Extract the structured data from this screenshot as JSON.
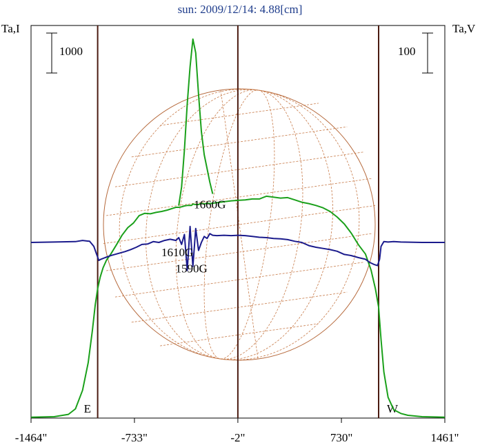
{
  "chart_data": {
    "type": "line",
    "title": "sun: 2009/12/14: 4.88[cm]",
    "ylabel_left": "Ta,I",
    "ylabel_right": "Ta,V",
    "scalebar_left": "1000",
    "scalebar_right": "100",
    "xlim": [
      -1464,
      1461
    ],
    "xticks": [
      {
        "value": -1464,
        "label": "-1464\""
      },
      {
        "value": -733,
        "label": "-733\""
      },
      {
        "value": -2,
        "label": "-2\""
      },
      {
        "value": 730,
        "label": "730\""
      },
      {
        "value": 1461,
        "label": "1461\""
      }
    ],
    "limb_markers": [
      {
        "value": -993,
        "label": "E"
      },
      {
        "value": -2,
        "label": ""
      },
      {
        "value": 993,
        "label": "W"
      }
    ],
    "annotations": [
      {
        "text": "1610G",
        "x": -430,
        "y_I": 3500
      },
      {
        "text": "1660G",
        "x": -200,
        "y_V": 85
      },
      {
        "text": "1590G",
        "x": -330,
        "y_V": -75
      }
    ],
    "series": [
      {
        "name": "I",
        "color": "#1aa01a",
        "x": [
          -1464,
          -1300,
          -1200,
          -1150,
          -1100,
          -1060,
          -1030,
          -1010,
          -993,
          -975,
          -955,
          -930,
          -900,
          -860,
          -820,
          -780,
          -740,
          -700,
          -660,
          -620,
          -580,
          -540,
          -500,
          -460,
          -440,
          -420,
          -400,
          -380,
          -360,
          -330,
          -320,
          -300,
          -280,
          -260,
          -240,
          -220,
          -200,
          -150,
          -100,
          -50,
          -2,
          50,
          100,
          150,
          200,
          250,
          300,
          350,
          400,
          450,
          500,
          550,
          600,
          650,
          700,
          750,
          800,
          850,
          900,
          940,
          970,
          993,
          1010,
          1030,
          1060,
          1100,
          1150,
          1200,
          1300,
          1461
        ],
        "y": [
          20,
          30,
          80,
          200,
          600,
          1200,
          1900,
          2450,
          2800,
          3050,
          3250,
          3420,
          3550,
          3750,
          3960,
          4120,
          4220,
          4380,
          4430,
          4420,
          4450,
          4470,
          4500,
          4540,
          4560,
          4560,
          4570,
          4590,
          4600,
          4600,
          4630,
          4620,
          4620,
          4650,
          4630,
          4650,
          4640,
          4660,
          4680,
          4700,
          4710,
          4720,
          4740,
          4740,
          4800,
          4780,
          4760,
          4770,
          4720,
          4670,
          4640,
          4600,
          4550,
          4470,
          4350,
          4200,
          4000,
          3750,
          3550,
          3200,
          2800,
          2400,
          1700,
          1000,
          450,
          180,
          100,
          60,
          30,
          20
        ]
      },
      {
        "name": "I-peak",
        "color": "#1aa01a",
        "x": [
          -420,
          -400,
          -380,
          -360,
          -340,
          -320,
          -300,
          -280,
          -260,
          -240,
          -220,
          -200,
          -180
        ],
        "y": [
          4600,
          5000,
          5800,
          6800,
          7600,
          8200,
          7900,
          7000,
          6200,
          5700,
          5400,
          5100,
          4850
        ]
      },
      {
        "name": "V",
        "color": "#1a1a8c",
        "x": [
          -1464,
          -1300,
          -1150,
          -1100,
          -1050,
          -1020,
          -1000,
          -985,
          -970,
          -940,
          -900,
          -850,
          -800,
          -760,
          -720,
          -680,
          -640,
          -600,
          -560,
          -520,
          -480,
          -440,
          -420,
          -400,
          -380,
          -360,
          -340,
          -320,
          -300,
          -280,
          -260,
          -240,
          -220,
          -200,
          -180,
          -150,
          -100,
          -50,
          -2,
          50,
          100,
          150,
          200,
          250,
          300,
          350,
          400,
          450,
          500,
          550,
          600,
          650,
          700,
          750,
          800,
          850,
          900,
          930,
          960,
          985,
          1000,
          1010,
          1030,
          1060,
          1100,
          1150,
          1300,
          1461
        ],
        "y": [
          0,
          1,
          2,
          5,
          3,
          -10,
          -30,
          -45,
          -42,
          -38,
          -33,
          -28,
          -23,
          -18,
          -12,
          -5,
          -4,
          2,
          0,
          5,
          8,
          5,
          12,
          -5,
          20,
          -70,
          40,
          -60,
          35,
          -20,
          0,
          15,
          10,
          22,
          18,
          17,
          18,
          17,
          18,
          17,
          15,
          13,
          12,
          10,
          9,
          7,
          3,
          0,
          -8,
          -12,
          -15,
          -18,
          -22,
          -30,
          -33,
          -38,
          -42,
          -50,
          -55,
          -58,
          -42,
          -10,
          2,
          1,
          2,
          1,
          0,
          0
        ]
      }
    ],
    "yscale_I": {
      "min": 0,
      "max": 8300
    },
    "yscale_V": {
      "min": -150,
      "max": 150
    }
  }
}
